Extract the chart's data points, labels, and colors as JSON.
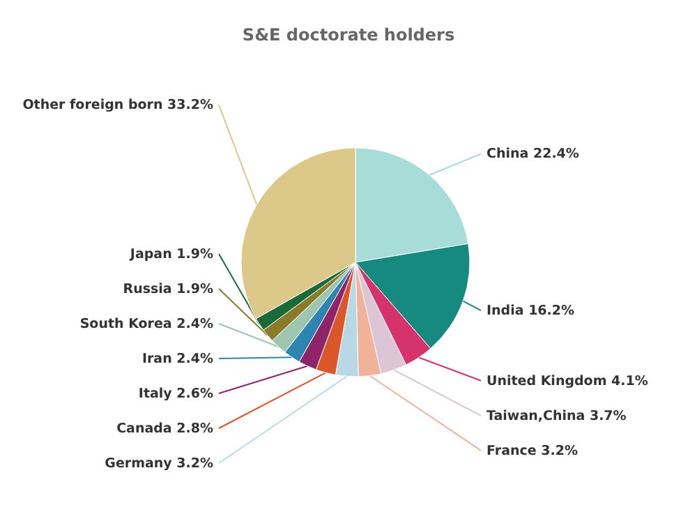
{
  "chart_data": {
    "type": "pie",
    "title": "S&E doctorate holders",
    "categories": [
      "China",
      "India",
      "United Kingdom",
      "Taiwan,China",
      "France",
      "Germany",
      "Canada",
      "Italy",
      "Iran",
      "South Korea",
      "Russia",
      "Japan",
      "Other foreign born"
    ],
    "values": [
      22.4,
      16.2,
      4.1,
      3.7,
      3.2,
      3.2,
      2.8,
      2.6,
      2.4,
      2.4,
      1.9,
      1.9,
      33.2
    ],
    "value_labels": [
      "22.4%",
      "16.2%",
      "4.1%",
      "3.7%",
      "3.2%",
      "3.2%",
      "2.8%",
      "2.6%",
      "2.4%",
      "2.4%",
      "1.9%",
      "1.9%",
      "33.2%"
    ],
    "colors": [
      "#a8dcd9",
      "#178a80",
      "#d6336c",
      "#dcc5d4",
      "#f1b29a",
      "#b9d8e6",
      "#d9572b",
      "#8f2468",
      "#2e86b0",
      "#9dc5b0",
      "#8a7a2a",
      "#1b6b3a",
      "#dcc98a"
    ],
    "legend": false
  }
}
